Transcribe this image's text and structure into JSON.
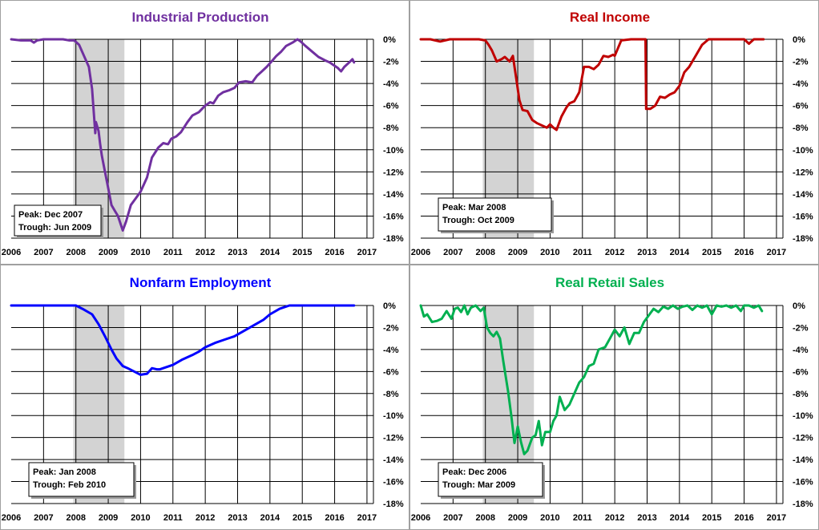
{
  "colors": {
    "recession_shading": "#d3d3d3",
    "grid": "#000000",
    "panel_border": "#a0a0a0"
  },
  "chart_data": [
    {
      "type": "line",
      "title": "Industrial Production",
      "color": "#7030a0",
      "xlim": [
        2006,
        2017.2
      ],
      "ylim": [
        -18,
        0
      ],
      "x_ticks": [
        "2006",
        "2007",
        "2008",
        "2009",
        "2010",
        "2011",
        "2012",
        "2013",
        "2014",
        "2015",
        "2016",
        "2017"
      ],
      "y_ticks": [
        "0%",
        "-2%",
        "-4%",
        "-6%",
        "-8%",
        "-10%",
        "-12%",
        "-14%",
        "-16%",
        "-18%"
      ],
      "recession": [
        2007.92,
        2009.5
      ],
      "annotation": {
        "peak": "Peak: Dec 2007",
        "trough": "Trough: Jun 2009"
      },
      "series": [
        {
          "x": [
            2006.0,
            2006.3,
            2006.6,
            2006.7,
            2006.8,
            2007.0,
            2007.3,
            2007.6,
            2007.8,
            2007.95,
            2008.1,
            2008.25,
            2008.4,
            2008.5,
            2008.6,
            2008.62,
            2008.7,
            2008.75,
            2008.8,
            2008.9,
            2009.0,
            2009.1,
            2009.2,
            2009.3,
            2009.45,
            2009.55,
            2009.7,
            2009.85,
            2010.0,
            2010.2,
            2010.35,
            2010.55,
            2010.7,
            2010.85,
            2010.95,
            2011.1,
            2011.25,
            2011.45,
            2011.6,
            2011.8,
            2012.0,
            2012.15,
            2012.25,
            2012.4,
            2012.55,
            2012.75,
            2012.9,
            2013.05,
            2013.25,
            2013.45,
            2013.6,
            2013.75,
            2013.9,
            2014.05,
            2014.2,
            2014.35,
            2014.5,
            2014.7,
            2014.85,
            2014.95,
            2015.1,
            2015.3,
            2015.5,
            2015.7,
            2015.85,
            2015.95,
            2016.1,
            2016.2,
            2016.3,
            2016.45,
            2016.55,
            2016.6
          ],
          "y": [
            0.0,
            -0.1,
            -0.1,
            -0.3,
            -0.1,
            0.0,
            0.0,
            0.0,
            -0.1,
            -0.1,
            -0.5,
            -1.5,
            -2.5,
            -4.5,
            -8.5,
            -7.5,
            -8.3,
            -9.5,
            -10.5,
            -12.0,
            -13.5,
            -15.0,
            -15.5,
            -16.0,
            -17.3,
            -16.5,
            -15.0,
            -14.4,
            -13.8,
            -12.5,
            -10.7,
            -9.8,
            -9.4,
            -9.5,
            -9.0,
            -8.8,
            -8.4,
            -7.5,
            -6.9,
            -6.6,
            -6.0,
            -5.7,
            -5.8,
            -5.1,
            -4.8,
            -4.6,
            -4.4,
            -3.9,
            -3.8,
            -3.9,
            -3.3,
            -2.9,
            -2.5,
            -2.0,
            -1.5,
            -1.1,
            -0.6,
            -0.3,
            0.0,
            -0.2,
            -0.6,
            -1.1,
            -1.6,
            -1.9,
            -2.1,
            -2.3,
            -2.6,
            -2.9,
            -2.5,
            -2.1,
            -1.8,
            -2.1
          ]
        }
      ]
    },
    {
      "type": "line",
      "title": "Real Income",
      "color": "#c00000",
      "xlim": [
        2006,
        2017.2
      ],
      "ylim": [
        -18,
        0
      ],
      "x_ticks": [
        "2006",
        "2007",
        "2008",
        "2009",
        "2010",
        "2011",
        "2012",
        "2013",
        "2014",
        "2015",
        "2016",
        "2017"
      ],
      "y_ticks": [
        "0%",
        "-2%",
        "-4%",
        "-6%",
        "-8%",
        "-10%",
        "-12%",
        "-14%",
        "-16%",
        "-18%"
      ],
      "recession": [
        2007.92,
        2009.5
      ],
      "annotation": {
        "peak": "Peak: Mar 2008",
        "trough": "Trough: Oct 2009"
      },
      "series": [
        {
          "x": [
            2006.0,
            2006.3,
            2006.6,
            2006.9,
            2007.2,
            2007.5,
            2007.8,
            2008.0,
            2008.1,
            2008.2,
            2008.35,
            2008.5,
            2008.6,
            2008.75,
            2008.85,
            2008.95,
            2009.05,
            2009.15,
            2009.3,
            2009.45,
            2009.6,
            2009.75,
            2009.9,
            2010.0,
            2010.1,
            2010.2,
            2010.35,
            2010.5,
            2010.6,
            2010.75,
            2010.9,
            2011.05,
            2011.2,
            2011.35,
            2011.5,
            2011.65,
            2011.8,
            2011.95,
            2012.0,
            2012.2,
            2012.5,
            2012.8,
            2012.95,
            2012.97,
            2013.1,
            2013.25,
            2013.4,
            2013.55,
            2013.7,
            2013.85,
            2014.0,
            2014.15,
            2014.3,
            2014.5,
            2014.7,
            2014.9,
            2015.0,
            2015.3,
            2015.6,
            2015.9,
            2016.0,
            2016.15,
            2016.3,
            2016.5,
            2016.6
          ],
          "y": [
            0.0,
            0.0,
            -0.2,
            0.0,
            0.0,
            0.0,
            0.0,
            -0.1,
            -0.5,
            -1.0,
            -2.0,
            -1.8,
            -1.6,
            -2.0,
            -1.5,
            -3.5,
            -5.5,
            -6.4,
            -6.5,
            -7.3,
            -7.6,
            -7.8,
            -8.0,
            -7.7,
            -8.0,
            -8.2,
            -7.0,
            -6.2,
            -5.8,
            -5.6,
            -4.8,
            -2.5,
            -2.5,
            -2.7,
            -2.3,
            -1.5,
            -1.6,
            -1.4,
            -1.5,
            -0.1,
            0.0,
            0.0,
            0.0,
            -6.3,
            -6.3,
            -6.0,
            -5.2,
            -5.3,
            -5.0,
            -4.8,
            -4.2,
            -3.0,
            -2.5,
            -1.5,
            -0.5,
            0.0,
            0.0,
            0.0,
            0.0,
            0.0,
            0.0,
            -0.4,
            0.0,
            0.0,
            0.0
          ]
        }
      ]
    },
    {
      "type": "line",
      "title": "Nonfarm Employment",
      "color": "#0000ff",
      "xlim": [
        2006,
        2017.2
      ],
      "ylim": [
        -18,
        0
      ],
      "x_ticks": [
        "2006",
        "2007",
        "2008",
        "2009",
        "2010",
        "2011",
        "2012",
        "2013",
        "2014",
        "2015",
        "2016",
        "2017"
      ],
      "y_ticks": [
        "0%",
        "-2%",
        "-4%",
        "-6%",
        "-8%",
        "-10%",
        "-12%",
        "-14%",
        "-16%",
        "-18%"
      ],
      "recession": [
        2007.92,
        2009.5
      ],
      "annotation": {
        "peak": "Peak: Jan 2008",
        "trough": "Trough: Feb 2010"
      },
      "series": [
        {
          "x": [
            2006.0,
            2007.0,
            2007.5,
            2008.0,
            2008.2,
            2008.5,
            2008.7,
            2008.9,
            2009.1,
            2009.25,
            2009.45,
            2009.6,
            2009.8,
            2010.0,
            2010.2,
            2010.35,
            2010.5,
            2010.6,
            2010.8,
            2011.0,
            2011.3,
            2011.6,
            2011.8,
            2012.0,
            2012.3,
            2012.6,
            2012.9,
            2013.2,
            2013.5,
            2013.8,
            2014.0,
            2014.3,
            2014.6,
            2015.0,
            2015.5,
            2016.0,
            2016.6
          ],
          "y": [
            0.0,
            0.0,
            0.0,
            0.0,
            -0.3,
            -0.8,
            -1.7,
            -2.8,
            -4.0,
            -4.8,
            -5.5,
            -5.7,
            -6.0,
            -6.3,
            -6.2,
            -5.7,
            -5.8,
            -5.8,
            -5.6,
            -5.4,
            -4.9,
            -4.5,
            -4.2,
            -3.8,
            -3.4,
            -3.1,
            -2.8,
            -2.3,
            -1.8,
            -1.3,
            -0.8,
            -0.3,
            0.0,
            0.0,
            0.0,
            0.0,
            0.0
          ]
        }
      ]
    },
    {
      "type": "line",
      "title": "Real Retail Sales",
      "color": "#00b050",
      "xlim": [
        2006,
        2017.2
      ],
      "ylim": [
        -18,
        0
      ],
      "x_ticks": [
        "2006",
        "2007",
        "2008",
        "2009",
        "2010",
        "2011",
        "2012",
        "2013",
        "2014",
        "2015",
        "2016",
        "2017"
      ],
      "y_ticks": [
        "0%",
        "-2%",
        "-4%",
        "-6%",
        "-8%",
        "-10%",
        "-12%",
        "-14%",
        "-16%",
        "-18%"
      ],
      "recession": [
        2007.92,
        2009.5
      ],
      "annotation": {
        "peak": "Peak: Dec 2006",
        "trough": "Trough: Mar 2009"
      },
      "series": [
        {
          "x": [
            2006.0,
            2006.1,
            2006.2,
            2006.35,
            2006.5,
            2006.65,
            2006.8,
            2006.95,
            2007.05,
            2007.15,
            2007.25,
            2007.35,
            2007.45,
            2007.55,
            2007.7,
            2007.85,
            2007.95,
            2008.05,
            2008.15,
            2008.25,
            2008.35,
            2008.45,
            2008.55,
            2008.7,
            2008.8,
            2008.9,
            2009.0,
            2009.1,
            2009.2,
            2009.3,
            2009.45,
            2009.55,
            2009.65,
            2009.75,
            2009.85,
            2010.0,
            2010.1,
            2010.2,
            2010.3,
            2010.45,
            2010.6,
            2010.75,
            2010.9,
            2011.05,
            2011.2,
            2011.35,
            2011.5,
            2011.7,
            2011.85,
            2012.0,
            2012.15,
            2012.3,
            2012.45,
            2012.6,
            2012.75,
            2012.9,
            2013.05,
            2013.2,
            2013.35,
            2013.5,
            2013.65,
            2013.8,
            2013.95,
            2014.1,
            2014.25,
            2014.4,
            2014.55,
            2014.7,
            2014.85,
            2015.0,
            2015.15,
            2015.3,
            2015.45,
            2015.6,
            2015.75,
            2015.9,
            2016.0,
            2016.15,
            2016.3,
            2016.45,
            2016.55
          ],
          "y": [
            0.0,
            -1.0,
            -0.8,
            -1.5,
            -1.4,
            -1.2,
            -0.5,
            -1.2,
            -0.3,
            -0.2,
            -0.6,
            0.0,
            -0.8,
            -0.2,
            0.0,
            -0.5,
            -0.2,
            -2.0,
            -2.5,
            -2.8,
            -2.4,
            -3.0,
            -5.0,
            -7.8,
            -10.0,
            -12.5,
            -11.0,
            -12.4,
            -13.5,
            -13.2,
            -12.0,
            -11.8,
            -10.5,
            -12.7,
            -11.5,
            -11.5,
            -10.5,
            -10.0,
            -8.3,
            -9.5,
            -9.0,
            -8.0,
            -7.0,
            -6.5,
            -5.5,
            -5.3,
            -4.0,
            -3.8,
            -3.0,
            -2.2,
            -2.8,
            -2.0,
            -3.5,
            -2.5,
            -2.5,
            -1.5,
            -0.9,
            -0.3,
            -0.6,
            -0.1,
            -0.3,
            0.0,
            -0.3,
            -0.1,
            0.0,
            -0.4,
            0.0,
            -0.2,
            0.0,
            -0.8,
            0.0,
            -0.1,
            0.0,
            -0.2,
            0.0,
            -0.5,
            0.0,
            0.0,
            -0.2,
            0.0,
            -0.5
          ]
        }
      ]
    }
  ]
}
